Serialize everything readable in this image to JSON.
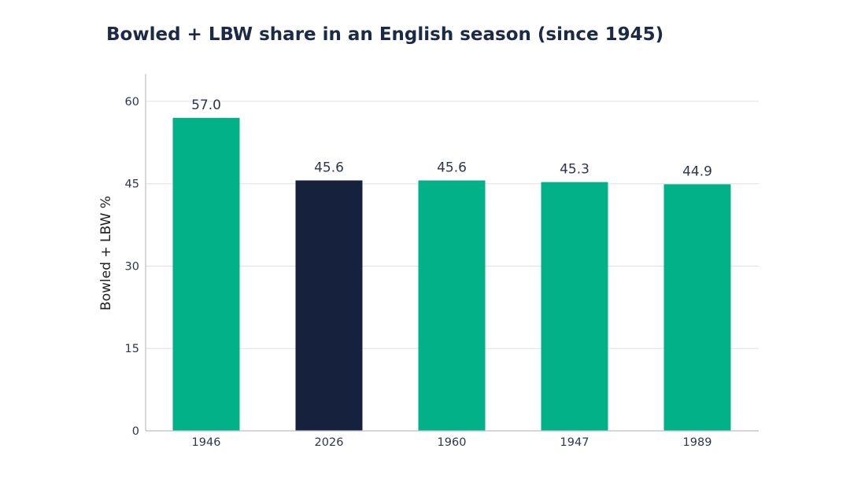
{
  "chart_data": {
    "type": "bar",
    "title": "Bowled + LBW share in an English season (since 1945)",
    "xlabel": "",
    "ylabel": "Bowled + LBW %",
    "categories": [
      "1946",
      "2026",
      "1960",
      "1947",
      "1989"
    ],
    "values": [
      57.0,
      45.6,
      45.6,
      45.3,
      44.9
    ],
    "data_labels": [
      "57.0",
      "45.6",
      "45.6",
      "45.3",
      "44.9"
    ],
    "highlight_index": 1,
    "ylim": [
      0,
      65
    ],
    "yticks": [
      0,
      15,
      30,
      45,
      60
    ],
    "grid": true,
    "colors": {
      "bar": "#03b188",
      "highlight": "#16223d"
    }
  }
}
